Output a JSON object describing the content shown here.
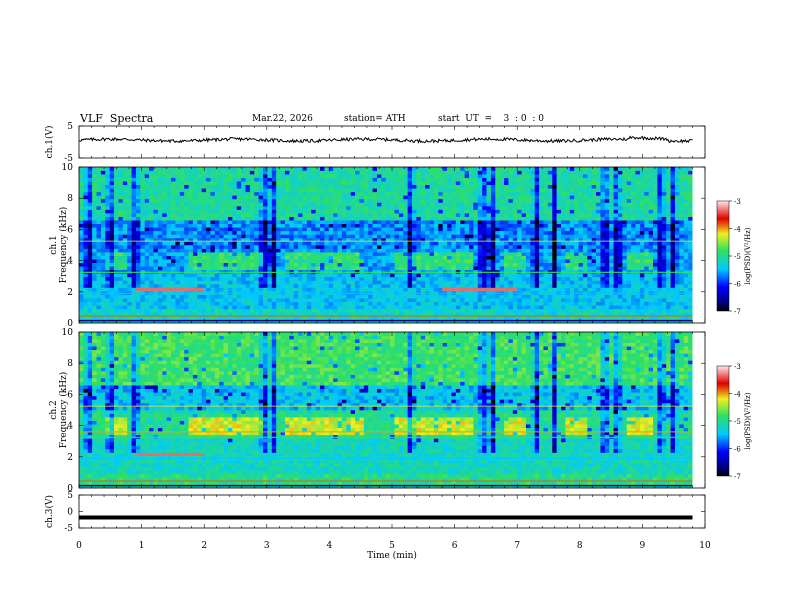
{
  "header": {
    "title": "VLF  Spectra",
    "date": "Mar.22, 2026",
    "station": "station= ATH",
    "start": "start  UT  =    3  : 0  : 0"
  },
  "chart_data": [
    {
      "type": "line",
      "name": "ch1-waveform",
      "ylabel": "ch.1(V)",
      "ylim": [
        -5,
        5
      ],
      "yticks": [
        "5",
        "-5"
      ],
      "xlim": [
        0,
        10
      ],
      "approx_level_v": 0.6,
      "noise_amplitude_v": 0.5
    },
    {
      "type": "heatmap",
      "name": "ch1-spectrogram",
      "ylabel": "ch.1\nFrequency  (kHz)",
      "ylabel_lines": [
        "ch.1",
        "Frequency  (kHz)"
      ],
      "ylim": [
        0,
        10
      ],
      "yticks": [
        "0",
        "2",
        "4",
        "6",
        "8",
        "10"
      ],
      "xlim": [
        0,
        10
      ],
      "data_end_min": 9.8,
      "colorbar": {
        "label": "log(PSD)(V²/Hz)",
        "range": [
          -7,
          -3
        ],
        "ticks": [
          "-3",
          "-4",
          "-5",
          "-6",
          "-7"
        ]
      },
      "features": {
        "pulse_band_khz": [
          3.4,
          4.6
        ],
        "pulse_intervals_min": [
          [
            0.4,
            0.75
          ],
          [
            1.75,
            2.95
          ],
          [
            3.3,
            4.55
          ],
          [
            5.05,
            6.3
          ],
          [
            6.8,
            7.15
          ],
          [
            7.8,
            8.15
          ],
          [
            8.75,
            9.15
          ]
        ],
        "dark_spike_times_min": [
          0.15,
          0.5,
          0.9,
          2.95,
          3.1,
          5.3,
          6.45,
          6.6,
          7.3,
          7.6,
          8.4,
          8.6,
          9.3,
          9.5
        ],
        "highlight_2khz_intervals_min": [
          [
            0.9,
            2.0
          ],
          [
            5.8,
            7.0
          ]
        ]
      }
    },
    {
      "type": "heatmap",
      "name": "ch2-spectrogram",
      "ylabel": "ch.2\nFrequency  (kHz)",
      "ylabel_lines": [
        "ch.2",
        "Frequency  (kHz)"
      ],
      "ylim": [
        0,
        10
      ],
      "yticks": [
        "0",
        "2",
        "4",
        "6",
        "8",
        "10"
      ],
      "xlim": [
        0,
        10
      ],
      "data_end_min": 9.8,
      "colorbar": {
        "label": "log(PSD)(V²/Hz)",
        "range": [
          -7,
          -3
        ],
        "ticks": [
          "-3",
          "-4",
          "-5",
          "-6",
          "-7"
        ]
      },
      "features": {
        "pulse_band_khz": [
          3.4,
          4.6
        ],
        "pulse_intervals_min": [
          [
            0.4,
            0.75
          ],
          [
            1.75,
            2.95
          ],
          [
            3.3,
            4.55
          ],
          [
            5.05,
            6.3
          ],
          [
            6.8,
            7.15
          ],
          [
            7.8,
            8.15
          ],
          [
            8.75,
            9.15
          ]
        ],
        "dark_spike_times_min": [
          0.15,
          0.5,
          0.9,
          2.95,
          3.1,
          5.3,
          6.45,
          6.6,
          7.3,
          7.6,
          8.4,
          8.6,
          9.3,
          9.5
        ],
        "highlight_2khz_intervals_min": [
          [
            0.9,
            2.0
          ]
        ]
      }
    },
    {
      "type": "line",
      "name": "ch3-waveform",
      "ylabel": "ch.3(V)",
      "ylim": [
        -5,
        5
      ],
      "yticks": [
        "5",
        "0",
        "-5"
      ],
      "xlim": [
        0,
        10
      ],
      "approx_level_v": -1.8
    }
  ],
  "xaxis": {
    "label": "Time  (min)",
    "ticks": [
      "0",
      "1",
      "2",
      "3",
      "4",
      "5",
      "6",
      "7",
      "8",
      "9",
      "10"
    ]
  },
  "colors": {
    "dark": "#000080",
    "blue": "#0000e0",
    "cyan": "#00c8ff",
    "green": "#30e060",
    "yellow": "#f0f020",
    "red": "#e00000",
    "pink": "#ffd0d0"
  }
}
